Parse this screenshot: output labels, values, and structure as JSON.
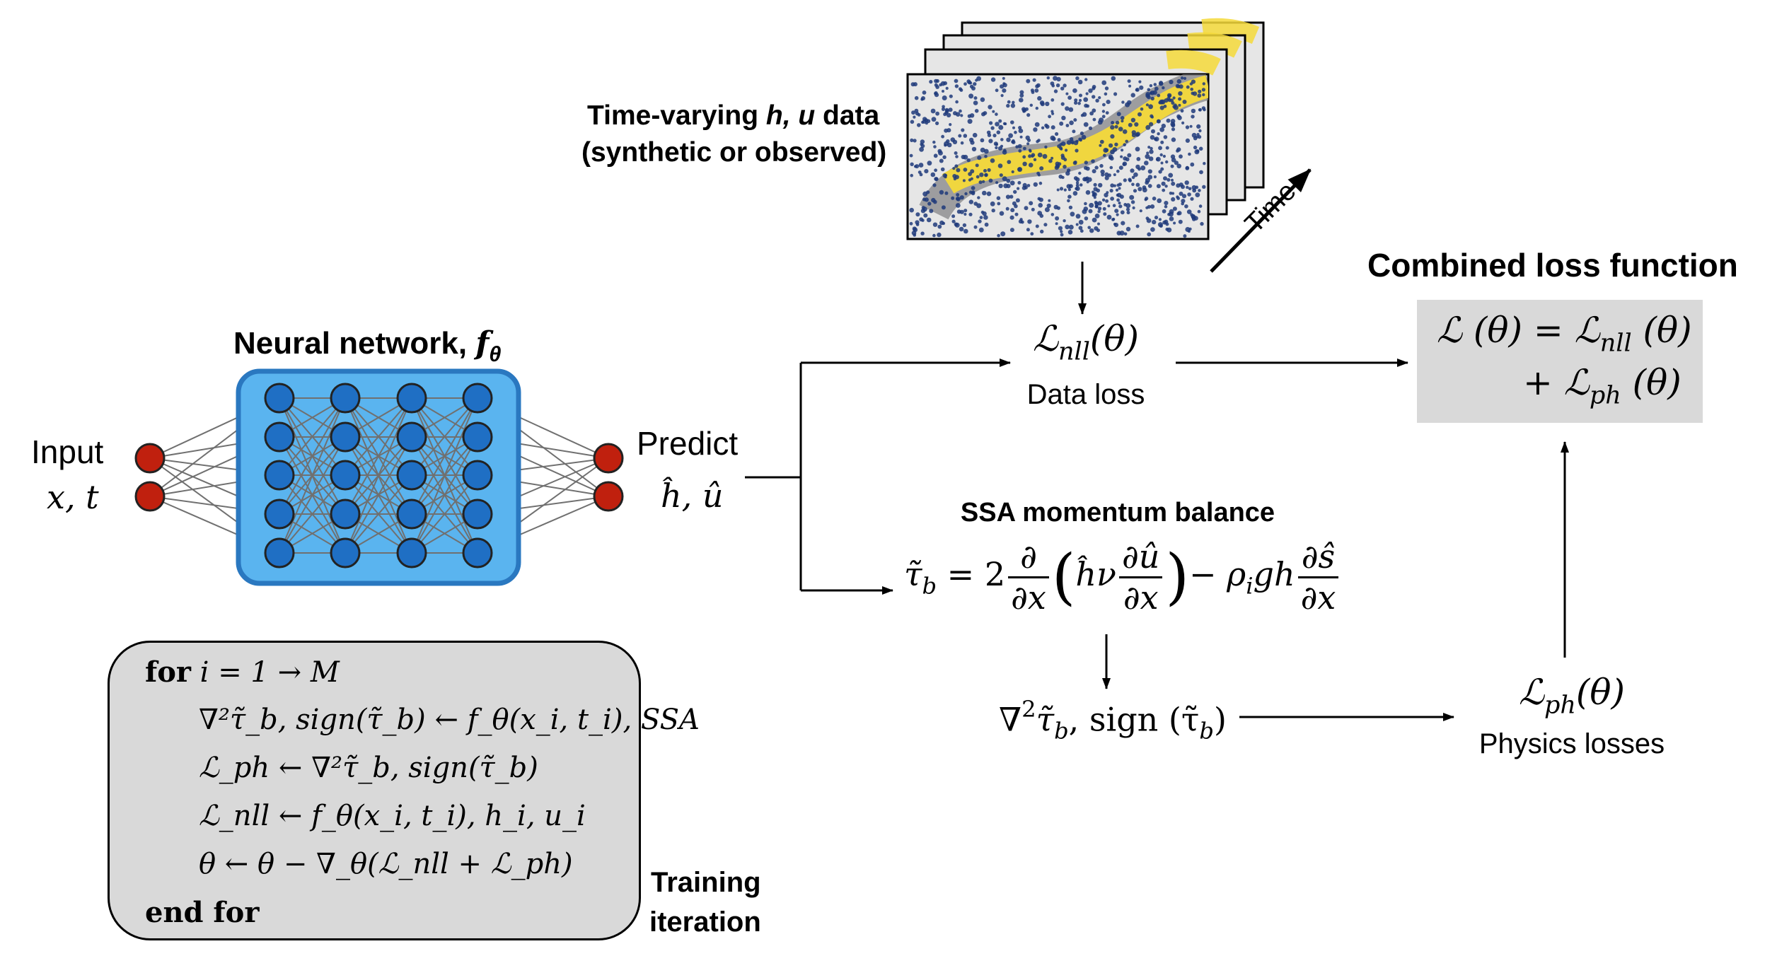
{
  "data_section": {
    "title_part1": "Time-varying ",
    "title_vars": "h, u",
    "title_part2": " data",
    "subtitle": "(synthetic or observed)",
    "time_label": "Time"
  },
  "network": {
    "title": "Neural network, ",
    "title_symbol": "f",
    "title_symbol_sub": "θ",
    "input_label": "Input",
    "input_vars": "x, t",
    "predict_label": "Predict",
    "predict_vars": "ĥ, û"
  },
  "data_loss": {
    "symbol": "ℒ",
    "sub": "nll",
    "arg": "(θ)",
    "label": "Data loss"
  },
  "combined": {
    "title": "Combined loss function",
    "line1_lhs": "ℒ (θ) = ℒ",
    "line1_sub": "nll",
    "line1_rhs": " (θ)",
    "line2_lhs": "+ ℒ",
    "line2_sub": "ph",
    "line2_rhs": " (θ)"
  },
  "ssa": {
    "title": "SSA momentum balance",
    "lhs": "τ̃",
    "lhs_sub": "b",
    "eq": " = 2",
    "frac1_num": "∂",
    "frac1_den": "∂x",
    "inner": "ĥν",
    "frac2_num": "∂û",
    "frac2_den": "∂x",
    "minus": "− ρ",
    "rho_sub": "i",
    "gh": "gh",
    "frac3_num": "∂ŝ",
    "frac3_den": "∂x"
  },
  "laplacian": {
    "text1": "∇",
    "sup": "2",
    "text2": "τ̃",
    "sub": "b",
    "text3": ",  sign (τ̃",
    "sub2": "b",
    "text4": ")"
  },
  "physics": {
    "symbol": "ℒ",
    "sub": "ph",
    "arg": "(θ)",
    "label": "Physics losses"
  },
  "algorithm": {
    "for_kw": "for",
    "for_rest": " i = 1 → M",
    "line2": "∇²τ̃_b, sign(τ̃_b) ← f_θ(x_i, t_i), SSA",
    "line3": "ℒ_ph ← ∇²τ̃_b, sign(τ̃_b)",
    "line4": "ℒ_nll ← f_θ(x_i, t_i), h_i, u_i",
    "line5": "θ ← θ − ∇_θ(ℒ_nll + ℒ_ph)",
    "end_kw": "end for",
    "caption_line1": "Training",
    "caption_line2": "iteration"
  },
  "colors": {
    "network_fill": "#5ab4ef",
    "network_border": "#2a78c0",
    "node_fill": "#1f6fc4",
    "io_node": "#c0200e",
    "box_gray": "#d9d9d9",
    "scatter_blue": "#1f3a7a",
    "band_yellow": "#f4d93a"
  }
}
